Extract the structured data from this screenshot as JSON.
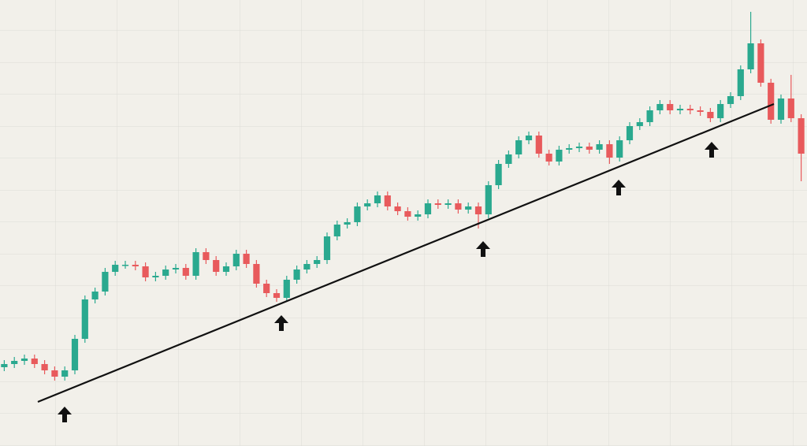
{
  "chart_data": {
    "type": "candlestick",
    "ylim": [
      0,
      566
    ],
    "up_color": "#2aa98f",
    "down_color": "#e85a5c",
    "open": [
      100,
      104,
      108,
      111,
      104,
      96,
      88,
      96,
      136,
      186,
      196,
      221,
      230,
      230,
      228,
      214,
      216,
      224,
      226,
      216,
      246,
      236,
      221,
      228,
      244,
      231,
      206,
      194,
      188,
      211,
      224,
      231,
      236,
      266,
      281,
      284,
      304,
      308,
      318,
      304,
      298,
      291,
      294,
      308,
      306,
      308,
      300,
      304,
      294,
      331,
      358,
      370,
      388,
      394,
      371,
      361,
      376,
      378,
      380,
      376,
      383,
      366,
      388,
      406,
      411,
      426,
      434,
      426,
      428,
      426,
      424,
      416,
      434,
      444,
      478,
      511,
      461,
      414,
      441,
      416
    ],
    "high": [
      109,
      113,
      116,
      116,
      109,
      101,
      101,
      141,
      191,
      201,
      226,
      235,
      235,
      235,
      233,
      221,
      229,
      231,
      231,
      251,
      251,
      241,
      233,
      249,
      249,
      236,
      211,
      199,
      216,
      229,
      236,
      241,
      271,
      286,
      289,
      309,
      313,
      323,
      323,
      309,
      303,
      299,
      313,
      313,
      313,
      313,
      309,
      309,
      336,
      363,
      375,
      393,
      399,
      399,
      376,
      381,
      383,
      385,
      385,
      388,
      388,
      393,
      411,
      416,
      431,
      439,
      439,
      433,
      433,
      431,
      429,
      439,
      449,
      483,
      551,
      516,
      466,
      446,
      471,
      421
    ],
    "low": [
      95,
      99,
      103,
      99,
      91,
      83,
      83,
      91,
      131,
      181,
      191,
      216,
      225,
      223,
      209,
      209,
      211,
      219,
      211,
      211,
      231,
      216,
      216,
      223,
      226,
      201,
      189,
      183,
      183,
      206,
      219,
      226,
      231,
      261,
      276,
      279,
      299,
      303,
      299,
      293,
      286,
      286,
      289,
      301,
      301,
      295,
      295,
      276,
      289,
      326,
      353,
      365,
      383,
      366,
      356,
      356,
      371,
      373,
      371,
      371,
      358,
      361,
      383,
      401,
      406,
      421,
      421,
      421,
      421,
      419,
      411,
      411,
      429,
      439,
      473,
      456,
      409,
      409,
      411,
      336
    ],
    "close": [
      104,
      108,
      111,
      104,
      96,
      88,
      96,
      136,
      186,
      196,
      221,
      230,
      230,
      228,
      214,
      216,
      224,
      226,
      216,
      246,
      236,
      221,
      228,
      244,
      231,
      206,
      194,
      188,
      211,
      224,
      231,
      236,
      266,
      281,
      284,
      304,
      308,
      318,
      304,
      298,
      291,
      294,
      308,
      306,
      308,
      300,
      304,
      294,
      331,
      358,
      370,
      388,
      394,
      371,
      361,
      376,
      378,
      380,
      376,
      383,
      366,
      388,
      406,
      411,
      426,
      434,
      426,
      428,
      426,
      424,
      416,
      434,
      444,
      478,
      511,
      461,
      414,
      441,
      416,
      371
    ],
    "grid": true
  }
}
